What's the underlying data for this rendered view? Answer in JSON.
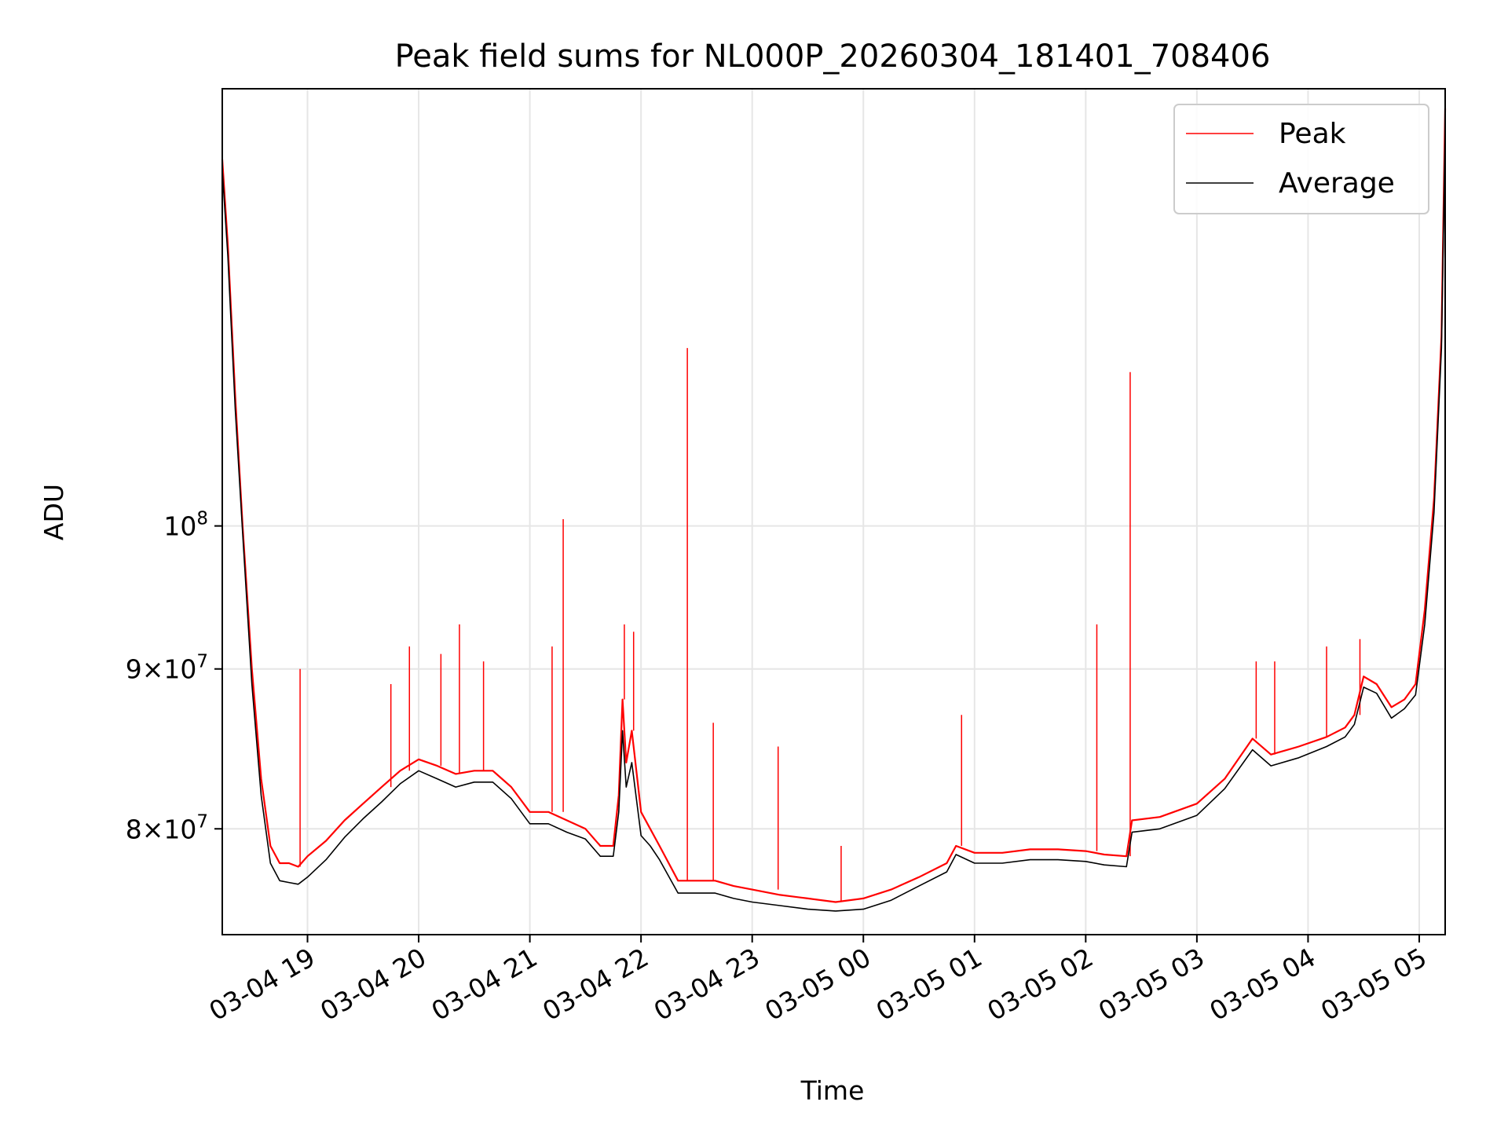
{
  "chart_data": {
    "type": "line",
    "title": "Peak field sums for NL000P_20260304_181401_708406",
    "xlabel": "Time",
    "ylabel": "ADU",
    "y_scale": "log",
    "grid": true,
    "legend_position": "top-right",
    "xlim": [
      "03-04 18:14",
      "03-05 05:14"
    ],
    "ylim": [
      74000000,
      138000000
    ],
    "x_ticks": [
      "03-04 19",
      "03-04 20",
      "03-04 21",
      "03-04 22",
      "03-04 23",
      "03-05 00",
      "03-05 01",
      "03-05 02",
      "03-05 03",
      "03-05 04",
      "03-05 05"
    ],
    "y_ticks": [
      {
        "value": 80000000,
        "mantissa": "8",
        "exponent": "7"
      },
      {
        "value": 90000000,
        "mantissa": "9",
        "exponent": "7"
      },
      {
        "value": 100000000,
        "mantissa": "",
        "exponent": "8"
      }
    ],
    "y_tick_base": "10",
    "y_tick_times": "×",
    "series": [
      {
        "name": "Peak",
        "color": "#ff0000",
        "x": [
          "03-04 18:14",
          "03-04 18:17",
          "03-04 18:21",
          "03-04 18:25",
          "03-04 18:30",
          "03-04 18:35",
          "03-04 18:40",
          "03-04 18:45",
          "03-04 18:50",
          "03-04 18:55",
          "03-04 19:00",
          "03-04 19:10",
          "03-04 19:20",
          "03-04 19:30",
          "03-04 19:40",
          "03-04 19:50",
          "03-04 20:00",
          "03-04 20:10",
          "03-04 20:20",
          "03-04 20:30",
          "03-04 20:40",
          "03-04 20:50",
          "03-04 21:00",
          "03-04 21:10",
          "03-04 21:20",
          "03-04 21:30",
          "03-04 21:38",
          "03-04 21:45",
          "03-04 21:48",
          "03-04 21:50",
          "03-04 21:52",
          "03-04 21:55",
          "03-04 22:00",
          "03-04 22:05",
          "03-04 22:10",
          "03-04 22:20",
          "03-04 22:30",
          "03-04 22:40",
          "03-04 22:50",
          "03-04 23:00",
          "03-04 23:15",
          "03-04 23:30",
          "03-04 23:45",
          "03-05 00:00",
          "03-05 00:15",
          "03-05 00:30",
          "03-05 00:45",
          "03-05 00:50",
          "03-05 01:00",
          "03-05 01:15",
          "03-05 01:30",
          "03-05 01:45",
          "03-05 02:00",
          "03-05 02:10",
          "03-05 02:22",
          "03-05 02:25",
          "03-05 02:40",
          "03-05 03:00",
          "03-05 03:15",
          "03-05 03:30",
          "03-05 03:40",
          "03-05 03:55",
          "03-05 04:10",
          "03-05 04:20",
          "03-05 04:25",
          "03-05 04:30",
          "03-05 04:37",
          "03-05 04:45",
          "03-05 04:52",
          "03-05 04:58",
          "03-05 05:03",
          "03-05 05:08",
          "03-05 05:12",
          "03-05 05:14"
        ],
        "values": [
          131000000,
          123000000,
          110000000,
          100000000,
          90000000,
          83000000,
          79000000,
          78000000,
          78000000,
          77800000,
          78400000,
          79300000,
          80500000,
          81500000,
          82500000,
          83500000,
          84200000,
          83800000,
          83300000,
          83500000,
          83500000,
          82500000,
          81000000,
          81000000,
          80500000,
          80000000,
          79000000,
          79000000,
          82000000,
          88000000,
          84000000,
          86000000,
          81000000,
          80000000,
          79000000,
          77000000,
          77000000,
          77000000,
          76700000,
          76500000,
          76200000,
          76000000,
          75800000,
          76000000,
          76500000,
          77200000,
          78000000,
          79000000,
          78600000,
          78600000,
          78800000,
          78800000,
          78700000,
          78500000,
          78400000,
          80500000,
          80700000,
          81500000,
          83000000,
          85500000,
          84500000,
          85000000,
          85600000,
          86200000,
          87000000,
          89500000,
          89000000,
          87500000,
          88000000,
          89000000,
          94000000,
          102000000,
          115000000,
          136000000
        ]
      },
      {
        "name": "Average",
        "color": "#000000",
        "x": [
          "03-04 18:14",
          "03-04 18:17",
          "03-04 18:21",
          "03-04 18:25",
          "03-04 18:30",
          "03-04 18:35",
          "03-04 18:40",
          "03-04 18:45",
          "03-04 18:50",
          "03-04 18:55",
          "03-04 19:00",
          "03-04 19:10",
          "03-04 19:20",
          "03-04 19:30",
          "03-04 19:40",
          "03-04 19:50",
          "03-04 20:00",
          "03-04 20:10",
          "03-04 20:20",
          "03-04 20:30",
          "03-04 20:40",
          "03-04 20:50",
          "03-04 21:00",
          "03-04 21:10",
          "03-04 21:20",
          "03-04 21:30",
          "03-04 21:38",
          "03-04 21:45",
          "03-04 21:48",
          "03-04 21:50",
          "03-04 21:52",
          "03-04 21:55",
          "03-04 22:00",
          "03-04 22:05",
          "03-04 22:10",
          "03-04 22:20",
          "03-04 22:30",
          "03-04 22:40",
          "03-04 22:50",
          "03-04 23:00",
          "03-04 23:15",
          "03-04 23:30",
          "03-04 23:45",
          "03-05 00:00",
          "03-05 00:15",
          "03-05 00:30",
          "03-05 00:45",
          "03-05 00:50",
          "03-05 01:00",
          "03-05 01:15",
          "03-05 01:30",
          "03-05 01:45",
          "03-05 02:00",
          "03-05 02:10",
          "03-05 02:22",
          "03-05 02:25",
          "03-05 02:40",
          "03-05 03:00",
          "03-05 03:15",
          "03-05 03:30",
          "03-05 03:40",
          "03-05 03:55",
          "03-05 04:10",
          "03-05 04:20",
          "03-05 04:25",
          "03-05 04:30",
          "03-05 04:37",
          "03-05 04:45",
          "03-05 04:52",
          "03-05 04:58",
          "03-05 05:03",
          "03-05 05:08",
          "03-05 05:12",
          "03-05 05:14"
        ],
        "values": [
          130000000,
          122000000,
          109000000,
          99500000,
          89000000,
          82000000,
          78000000,
          77000000,
          76900000,
          76800000,
          77200000,
          78200000,
          79500000,
          80600000,
          81600000,
          82700000,
          83500000,
          83000000,
          82500000,
          82800000,
          82800000,
          81800000,
          80300000,
          80300000,
          79800000,
          79400000,
          78400000,
          78400000,
          81000000,
          86000000,
          82500000,
          84000000,
          79600000,
          79000000,
          78200000,
          76300000,
          76300000,
          76300000,
          76000000,
          75800000,
          75600000,
          75400000,
          75300000,
          75400000,
          75900000,
          76700000,
          77500000,
          78500000,
          78000000,
          78000000,
          78200000,
          78200000,
          78100000,
          77900000,
          77800000,
          79800000,
          80000000,
          80800000,
          82400000,
          84800000,
          83800000,
          84300000,
          85000000,
          85600000,
          86400000,
          88800000,
          88400000,
          86800000,
          87400000,
          88300000,
          93000000,
          101000000,
          114000000,
          134000000
        ]
      }
    ],
    "spikes": [
      {
        "x": "03-04 18:56",
        "value": 90000000
      },
      {
        "x": "03-04 19:45",
        "value": 89000000
      },
      {
        "x": "03-04 19:55",
        "value": 91500000
      },
      {
        "x": "03-04 20:12",
        "value": 91000000
      },
      {
        "x": "03-04 20:22",
        "value": 93000000
      },
      {
        "x": "03-04 20:35",
        "value": 90500000
      },
      {
        "x": "03-04 21:12",
        "value": 91500000
      },
      {
        "x": "03-04 21:18",
        "value": 100500000
      },
      {
        "x": "03-04 21:51",
        "value": 93000000
      },
      {
        "x": "03-04 21:56",
        "value": 92500000
      },
      {
        "x": "03-04 22:25",
        "value": 114000000
      },
      {
        "x": "03-04 22:39",
        "value": 86500000
      },
      {
        "x": "03-04 23:14",
        "value": 85000000
      },
      {
        "x": "03-04 23:48",
        "value": 79000000
      },
      {
        "x": "03-05 00:53",
        "value": 87000000
      },
      {
        "x": "03-05 02:06",
        "value": 93000000
      },
      {
        "x": "03-05 02:24",
        "value": 112000000
      },
      {
        "x": "03-05 03:32",
        "value": 90500000
      },
      {
        "x": "03-05 03:42",
        "value": 90500000
      },
      {
        "x": "03-05 04:10",
        "value": 91500000
      },
      {
        "x": "03-05 04:28",
        "value": 92000000
      }
    ]
  }
}
